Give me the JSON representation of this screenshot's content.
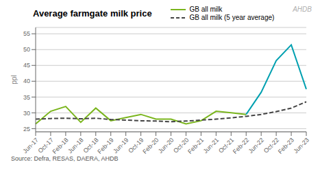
{
  "chart_data": {
    "type": "line",
    "title": "Average farmgate milk price",
    "y_label": "ppl",
    "source": "Source: Defra, RESAS, DAERA, AHDB",
    "annotations": [
      "AHDB"
    ],
    "categories": [
      "Jun-17",
      "Oct-17",
      "Feb-18",
      "Jun-18",
      "Oct-18",
      "Feb-19",
      "Jun-19",
      "Oct-19",
      "Feb-20",
      "Jun-20",
      "Oct-20",
      "Feb-21",
      "Jun-21",
      "Oct-21",
      "Feb-22",
      "Jun-22",
      "Oct-22",
      "Feb-23",
      "Jun-23"
    ],
    "series": [
      {
        "name": "GB all milk",
        "color": "#7ab51d",
        "colors": [
          "#7ab51d",
          "#7ab51d",
          "#7ab51d",
          "#7ab51d",
          "#7ab51d",
          "#7ab51d",
          "#7ab51d",
          "#7ab51d",
          "#7ab51d",
          "#7ab51d",
          "#7ab51d",
          "#7ab51d",
          "#7ab51d",
          "#7ab51d",
          "#7ab51d",
          "#00a0b0",
          "#00a0b0",
          "#00a0b0",
          "#00a0b0"
        ],
        "line_style": "solid",
        "values": [
          26.5,
          30.5,
          32.0,
          27.0,
          31.5,
          27.5,
          28.5,
          29.5,
          28.0,
          28.0,
          26.5,
          27.5,
          30.5,
          30.0,
          29.5,
          36.5,
          46.5,
          51.5,
          37.5
        ]
      },
      {
        "name": "GB all milk (5 year average)",
        "color": "#444444",
        "line_style": "dashed",
        "values": [
          28.0,
          28.2,
          28.3,
          28.1,
          28.3,
          27.9,
          27.7,
          27.5,
          27.4,
          27.2,
          27.4,
          27.7,
          28.0,
          28.4,
          28.9,
          29.5,
          30.4,
          31.5,
          33.5
        ]
      }
    ],
    "ylim": [
      24,
      57
    ],
    "yticks": [
      25,
      30,
      35,
      40,
      45,
      50,
      55
    ],
    "grid": true,
    "legend": "top"
  }
}
